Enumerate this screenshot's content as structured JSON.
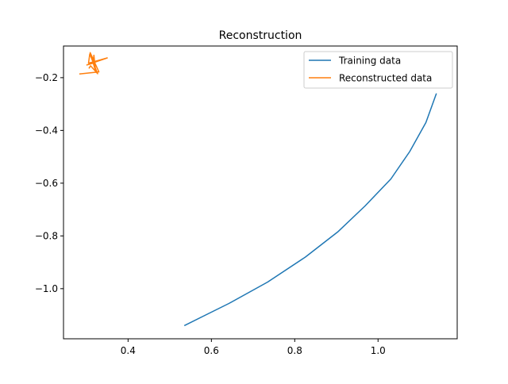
{
  "chart_data": {
    "type": "line",
    "title": "Reconstruction",
    "xlabel": "",
    "ylabel": "",
    "xlim": [
      0.245,
      1.19
    ],
    "ylim": [
      -1.19,
      -0.08
    ],
    "xticks": [
      0.4,
      0.6,
      0.8,
      1.0
    ],
    "yticks": [
      -1.0,
      -0.8,
      -0.6,
      -0.4,
      -0.2
    ],
    "xtick_labels": [
      "0.4",
      "0.6",
      "0.8",
      "1.0"
    ],
    "ytick_labels": [
      "−1.0",
      "−0.8",
      "−0.6",
      "−0.4",
      "−0.2"
    ],
    "grid": false,
    "legend_position": "upper-right",
    "series": [
      {
        "name": "Training data",
        "color": "#1f77b4",
        "x": [
          0.535,
          0.642,
          0.735,
          0.826,
          0.903,
          0.969,
          1.031,
          1.076,
          1.115,
          1.14
        ],
        "y": [
          -1.14,
          -1.056,
          -0.975,
          -0.88,
          -0.785,
          -0.686,
          -0.584,
          -0.48,
          -0.37,
          -0.26
        ]
      },
      {
        "name": "Reconstructed data",
        "color": "#ff7f0e",
        "x": [
          0.283,
          0.33,
          0.309,
          0.322,
          0.318,
          0.316,
          0.301,
          0.35,
          0.305,
          0.308,
          0.327,
          0.31,
          0.306
        ],
        "y": [
          -0.186,
          -0.178,
          -0.105,
          -0.175,
          -0.115,
          -0.145,
          -0.152,
          -0.125,
          -0.145,
          -0.11,
          -0.185,
          -0.155,
          -0.165
        ]
      }
    ]
  }
}
